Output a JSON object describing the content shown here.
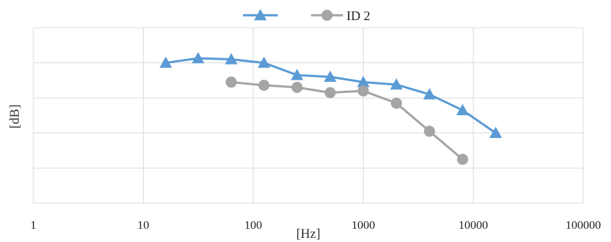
{
  "chart_data": {
    "type": "line",
    "xscale": "log",
    "xlim": [
      1,
      100000
    ],
    "ylim": [
      0,
      5
    ],
    "xlabel": "[Hz]",
    "ylabel": "[dB]",
    "x_ticks": [
      "1",
      "10",
      "100",
      "1000",
      "10000",
      "100000"
    ],
    "grid": true,
    "legend_position": "top",
    "series": [
      {
        "name": "",
        "color": "#5b9bd5",
        "marker": "triangle",
        "x": [
          16,
          31.5,
          63,
          125,
          250,
          500,
          1000,
          2000,
          4000,
          8000,
          16000
        ],
        "y": [
          4.0,
          4.13,
          4.1,
          4.0,
          3.65,
          3.6,
          3.45,
          3.38,
          3.1,
          2.65,
          2.0
        ]
      },
      {
        "name": "ID 2",
        "color": "#a5a5a5",
        "marker": "circle",
        "x": [
          63,
          125,
          250,
          500,
          1000,
          2000,
          4000,
          8000
        ],
        "y": [
          3.45,
          3.36,
          3.3,
          3.15,
          3.2,
          2.85,
          2.05,
          1.25
        ]
      }
    ]
  }
}
